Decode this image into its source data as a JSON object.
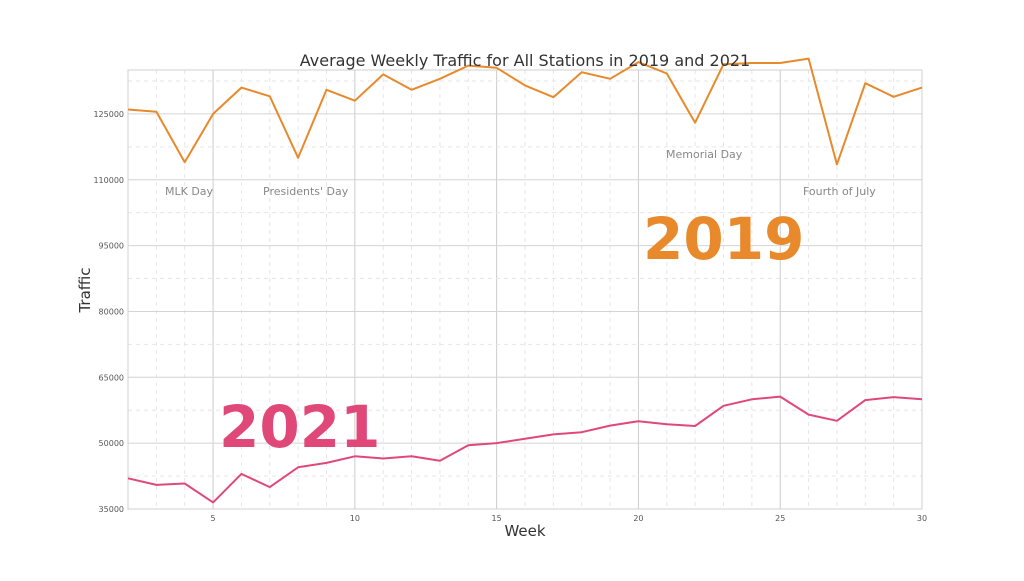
{
  "chart_data": {
    "type": "line",
    "title": "Average Weekly Traffic for All Stations in 2019 and 2021",
    "xlabel": "Week",
    "ylabel": "Traffic",
    "xlim": [
      2,
      30
    ],
    "ylim": [
      35000,
      135000
    ],
    "x_ticks": [
      5,
      10,
      15,
      20,
      25,
      30
    ],
    "y_ticks": [
      35000,
      50000,
      65000,
      80000,
      95000,
      110000,
      125000
    ],
    "grid": true,
    "x": [
      2,
      3,
      4,
      5,
      6,
      7,
      8,
      9,
      10,
      11,
      12,
      13,
      14,
      15,
      16,
      17,
      18,
      19,
      20,
      21,
      22,
      23,
      24,
      25,
      26,
      27,
      28,
      29,
      30
    ],
    "series": [
      {
        "name": "2019",
        "color": "#E8892B",
        "values": [
          126000,
          125500,
          114000,
          125000,
          131000,
          129000,
          115000,
          130500,
          128000,
          134000,
          130500,
          133000,
          136000,
          135500,
          131500,
          128800,
          134500,
          133000,
          136800,
          134200,
          123000,
          136300,
          136600,
          136600,
          137600,
          113500,
          132000,
          128900,
          131000
        ]
      },
      {
        "name": "2021",
        "color": "#E0487A",
        "values": [
          42000,
          40500,
          40800,
          36500,
          43000,
          40000,
          44500,
          45500,
          47000,
          46500,
          47000,
          46000,
          49500,
          50000,
          51000,
          52000,
          52500,
          54000,
          55000,
          54300,
          53900,
          58500,
          60000,
          60600,
          56500,
          55100,
          59800,
          60500,
          60000
        ]
      }
    ],
    "annotations": [
      "MLK Day",
      "Presidents' Day",
      "Memorial Day",
      "Fourth of July"
    ],
    "series_labels": [
      "2019",
      "2021"
    ]
  }
}
